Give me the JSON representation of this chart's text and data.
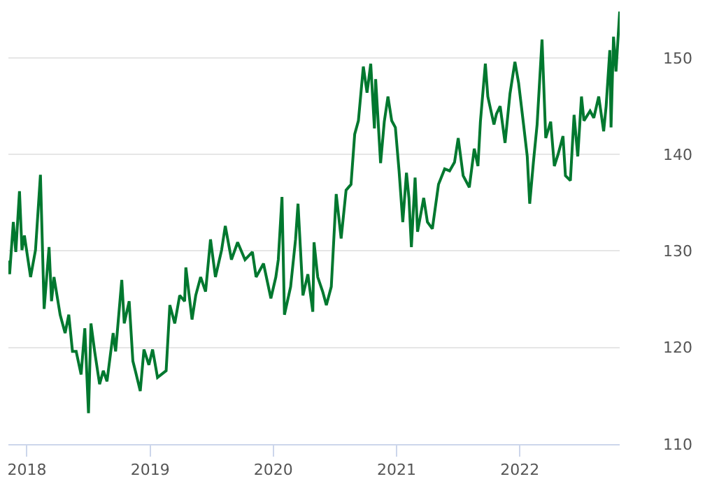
{
  "chart_data": {
    "type": "line",
    "x": [
      2017.85,
      2017.86,
      2017.89,
      2017.91,
      2017.94,
      2017.96,
      2017.98,
      2018.03,
      2018.07,
      2018.11,
      2018.14,
      2018.18,
      2018.2,
      2018.22,
      2018.27,
      2018.31,
      2018.34,
      2018.37,
      2018.4,
      2018.44,
      2018.47,
      2018.5,
      2018.52,
      2018.55,
      2018.59,
      2018.62,
      2018.65,
      2018.7,
      2018.72,
      2018.77,
      2018.79,
      2018.83,
      2018.86,
      2018.88,
      2018.92,
      2018.95,
      2018.99,
      2019.02,
      2019.06,
      2019.13,
      2019.16,
      2019.2,
      2019.24,
      2019.28,
      2019.29,
      2019.34,
      2019.37,
      2019.41,
      2019.45,
      2019.49,
      2019.53,
      2019.58,
      2019.61,
      2019.66,
      2019.71,
      2019.77,
      2019.83,
      2019.86,
      2019.92,
      2019.98,
      2020.02,
      2020.04,
      2020.07,
      2020.09,
      2020.14,
      2020.18,
      2020.2,
      2020.24,
      2020.28,
      2020.32,
      2020.33,
      2020.36,
      2020.4,
      2020.43,
      2020.47,
      2020.51,
      2020.55,
      2020.59,
      2020.63,
      2020.66,
      2020.69,
      2020.73,
      2020.76,
      2020.79,
      2020.82,
      2020.83,
      2020.87,
      2020.9,
      2020.93,
      2020.96,
      2020.99,
      2021.02,
      2021.05,
      2021.08,
      2021.1,
      2021.12,
      2021.15,
      2021.17,
      2021.22,
      2021.25,
      2021.29,
      2021.34,
      2021.39,
      2021.43,
      2021.47,
      2021.5,
      2021.54,
      2021.59,
      2021.63,
      2021.66,
      2021.68,
      2021.72,
      2021.74,
      2021.79,
      2021.81,
      2021.84,
      2021.88,
      2021.92,
      2021.96,
      2021.99,
      2022.03,
      2022.06,
      2022.08,
      2022.11,
      2022.14,
      2022.18,
      2022.21,
      2022.25,
      2022.28,
      2022.31,
      2022.35,
      2022.37,
      2022.41,
      2022.44,
      2022.47,
      2022.5,
      2022.52,
      2022.57,
      2022.6,
      2022.64,
      2022.68,
      2022.7,
      2022.73,
      2022.74,
      2022.76,
      2022.78,
      2022.81
    ],
    "series": [
      {
        "color": "#00782f",
        "values": [
          129.0,
          127.6,
          133.0,
          129.9,
          136.2,
          130.1,
          131.6,
          127.3,
          130.1,
          137.9,
          124.0,
          130.4,
          124.8,
          127.3,
          123.4,
          121.5,
          123.4,
          119.6,
          119.6,
          117.2,
          122.0,
          113.2,
          122.5,
          119.6,
          116.2,
          117.6,
          116.5,
          121.5,
          119.6,
          127.0,
          122.5,
          124.8,
          118.6,
          117.6,
          115.5,
          119.8,
          118.2,
          119.8,
          116.9,
          117.6,
          124.4,
          122.5,
          125.4,
          124.8,
          128.3,
          122.9,
          125.4,
          127.3,
          125.8,
          131.2,
          127.3,
          130.1,
          132.6,
          129.1,
          130.9,
          129.1,
          129.9,
          127.3,
          128.7,
          125.1,
          127.3,
          129.1,
          135.6,
          123.4,
          126.3,
          131.2,
          134.9,
          125.4,
          127.6,
          123.7,
          130.9,
          127.3,
          125.8,
          124.4,
          126.3,
          135.9,
          131.3,
          136.3,
          136.9,
          142.1,
          143.5,
          149.1,
          146.4,
          149.4,
          142.7,
          147.8,
          139.1,
          143.4,
          146.0,
          143.5,
          142.8,
          138.3,
          133.0,
          138.1,
          135.5,
          130.4,
          137.6,
          132.0,
          135.5,
          133.0,
          132.3,
          136.9,
          138.5,
          138.3,
          139.2,
          141.7,
          137.8,
          136.6,
          140.6,
          138.8,
          143.4,
          149.4,
          146.0,
          143.1,
          144.2,
          145.0,
          141.2,
          146.3,
          149.6,
          147.4,
          143.1,
          139.8,
          134.9,
          139.2,
          143.1,
          151.9,
          141.7,
          143.4,
          138.8,
          140.0,
          141.9,
          137.8,
          137.3,
          144.1,
          139.8,
          146.0,
          143.5,
          144.5,
          143.8,
          146.0,
          142.4,
          145.0,
          150.8,
          142.8,
          152.2,
          148.6,
          154.8
        ]
      }
    ],
    "xlim": [
      2017.85,
      2022.81
    ],
    "xticks": [
      2018,
      2019,
      2020,
      2021,
      2022
    ],
    "ylim": [
      110,
      156
    ],
    "yticks": [
      110,
      120,
      130,
      140,
      150
    ],
    "grid": "y",
    "marker": "none",
    "line_style": "solid"
  }
}
